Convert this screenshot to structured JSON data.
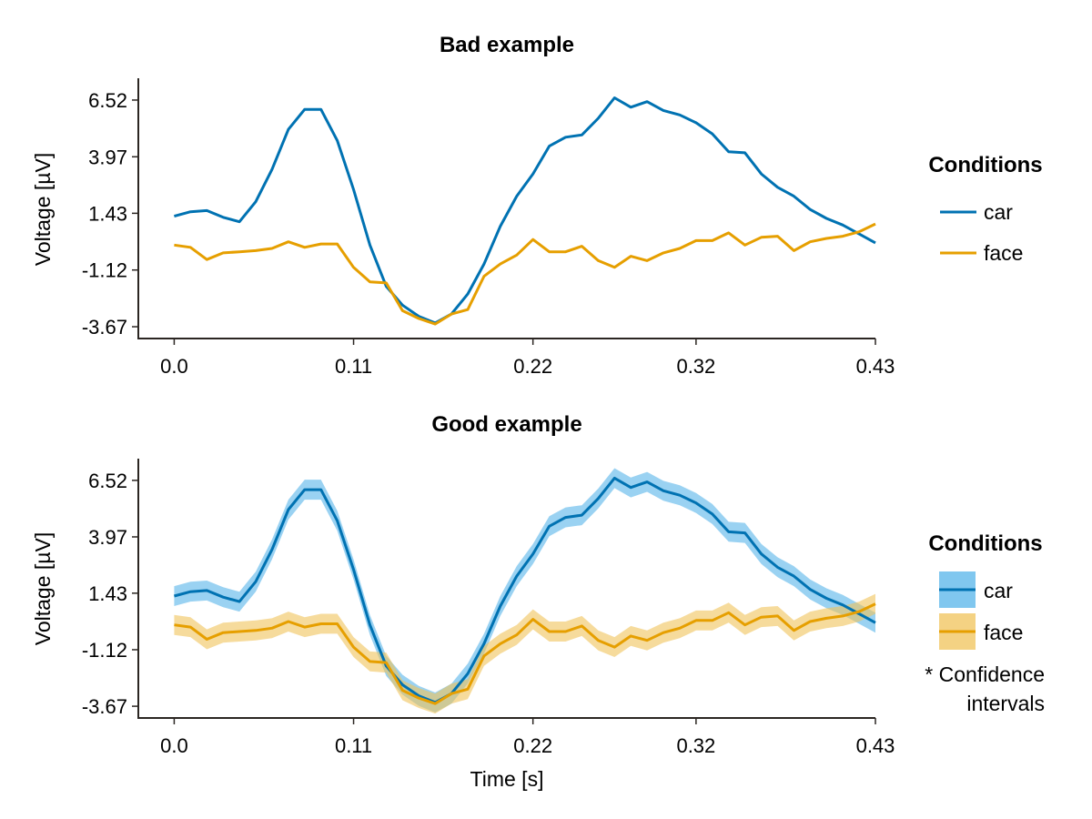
{
  "chart_data": [
    {
      "type": "line",
      "title": "Bad example",
      "xlabel": "",
      "ylabel": "Voltage [µV]",
      "xticks": [
        "0.0",
        "0.11",
        "0.22",
        "0.32",
        "0.43"
      ],
      "yticks": [
        "6.52",
        "3.97",
        "1.43",
        "-1.12",
        "-3.67"
      ],
      "xlim": [
        -0.022,
        0.43
      ],
      "ylim": [
        -4.2,
        7.5
      ],
      "x_start": 0.0,
      "x_step": 0.01,
      "series": [
        {
          "name": "car",
          "color": "#0072B2",
          "values": [
            1.3,
            1.5,
            1.55,
            1.25,
            1.05,
            1.95,
            3.4,
            5.2,
            6.1,
            6.1,
            4.7,
            2.5,
            0.0,
            -1.85,
            -2.7,
            -3.2,
            -3.5,
            -3.1,
            -2.2,
            -0.85,
            0.85,
            2.2,
            3.2,
            4.45,
            4.85,
            4.95,
            5.7,
            6.62,
            6.2,
            6.45,
            6.05,
            5.85,
            5.5,
            5.0,
            4.2,
            4.15,
            3.2,
            2.6,
            2.2,
            1.6,
            1.2,
            0.9,
            0.5,
            0.1
          ]
        },
        {
          "name": "face",
          "color": "#E69F00",
          "values": [
            0.0,
            -0.1,
            -0.65,
            -0.35,
            -0.3,
            -0.25,
            -0.15,
            0.15,
            -0.1,
            0.05,
            0.05,
            -1.0,
            -1.65,
            -1.7,
            -2.95,
            -3.3,
            -3.55,
            -3.1,
            -2.9,
            -1.4,
            -0.85,
            -0.45,
            0.25,
            -0.3,
            -0.3,
            -0.05,
            -0.7,
            -1.0,
            -0.5,
            -0.7,
            -0.35,
            -0.15,
            0.2,
            0.2,
            0.55,
            0.0,
            0.35,
            0.4,
            -0.25,
            0.15,
            0.3,
            0.4,
            0.6,
            0.95
          ]
        }
      ]
    },
    {
      "type": "area",
      "title": "Good example",
      "xlabel": "Time [s]",
      "ylabel": "Voltage [µV]",
      "xticks": [
        "0.0",
        "0.11",
        "0.22",
        "0.32",
        "0.43"
      ],
      "yticks": [
        "6.52",
        "3.97",
        "1.43",
        "-1.12",
        "-3.67"
      ],
      "xlim": [
        -0.022,
        0.43
      ],
      "ylim": [
        -4.2,
        7.5
      ],
      "x_start": 0.0,
      "x_step": 0.01,
      "band": 0.45,
      "series": [
        {
          "name": "car",
          "color": "#0072B2",
          "band_color": "#56B4E9",
          "values": [
            1.3,
            1.5,
            1.55,
            1.25,
            1.05,
            1.95,
            3.4,
            5.2,
            6.1,
            6.1,
            4.7,
            2.5,
            0.0,
            -1.85,
            -2.7,
            -3.2,
            -3.5,
            -3.1,
            -2.2,
            -0.85,
            0.85,
            2.2,
            3.2,
            4.45,
            4.85,
            4.95,
            5.7,
            6.62,
            6.2,
            6.45,
            6.05,
            5.85,
            5.5,
            5.0,
            4.2,
            4.15,
            3.2,
            2.6,
            2.2,
            1.6,
            1.2,
            0.9,
            0.5,
            0.1
          ]
        },
        {
          "name": "face",
          "color": "#E69F00",
          "band_color": "#F0C35A",
          "values": [
            0.0,
            -0.1,
            -0.65,
            -0.35,
            -0.3,
            -0.25,
            -0.15,
            0.15,
            -0.1,
            0.05,
            0.05,
            -1.0,
            -1.65,
            -1.7,
            -2.95,
            -3.3,
            -3.55,
            -3.1,
            -2.9,
            -1.4,
            -0.85,
            -0.45,
            0.25,
            -0.3,
            -0.3,
            -0.05,
            -0.7,
            -1.0,
            -0.5,
            -0.7,
            -0.35,
            -0.15,
            0.2,
            0.2,
            0.55,
            0.0,
            0.35,
            0.4,
            -0.25,
            0.15,
            0.3,
            0.4,
            0.6,
            0.95
          ]
        }
      ]
    }
  ],
  "legends": [
    {
      "title": "Conditions",
      "items": [
        "car",
        "face"
      ]
    },
    {
      "title": "Conditions",
      "items": [
        "car",
        "face"
      ],
      "note_line1": "* Confidence",
      "note_line2": "intervals"
    }
  ]
}
